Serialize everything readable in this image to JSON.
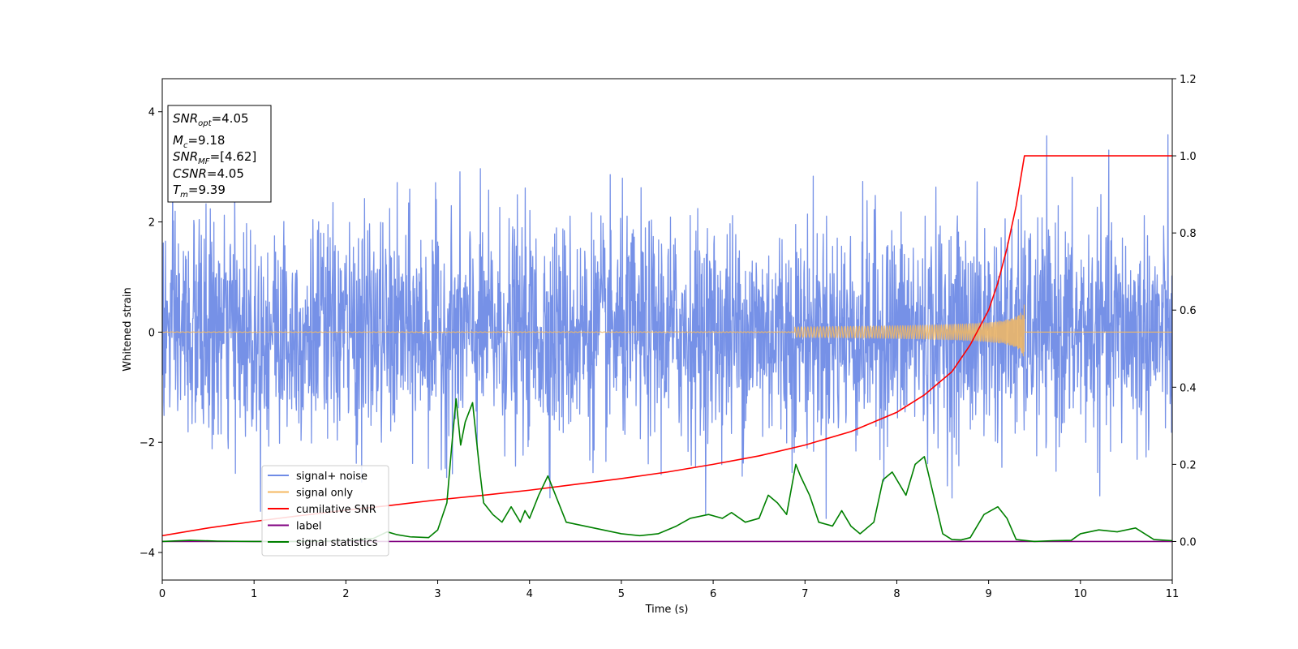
{
  "chart_data": {
    "type": "line",
    "title": "",
    "xlabel": "Time (s)",
    "ylabel": "Whitened strain",
    "xlim": [
      0,
      11
    ],
    "ylim": [
      -4.5,
      4.6
    ],
    "y2lim": [
      -0.1,
      1.2
    ],
    "x_ticks": [
      "0",
      "1",
      "2",
      "3",
      "4",
      "5",
      "6",
      "7",
      "8",
      "9",
      "10",
      "11"
    ],
    "y_ticks": [
      "−4",
      "−2",
      "0",
      "2",
      "4"
    ],
    "y2_ticks": [
      "0.0",
      "0.2",
      "0.4",
      "0.6",
      "0.8",
      "1.0",
      "1.2"
    ],
    "grid": false,
    "legend_position": "lower-left",
    "info_box": {
      "snr_opt": {
        "sym": "SNR",
        "sub": "opt",
        "val": "=4.05"
      },
      "mc": {
        "sym": "M",
        "sub": "c",
        "val": "=9.18"
      },
      "snr_mf": {
        "sym": "SNR",
        "sub": "MF",
        "val": "=[4.62]"
      },
      "csnr": {
        "sym": "CSNR",
        "val": "=4.05"
      },
      "tm": {
        "sym": "T",
        "sub": "m",
        "val": "=9.39"
      }
    },
    "series": [
      {
        "name": "signal+ noise",
        "axis": "left",
        "color": "#6f8be6",
        "kind": "noise",
        "sigma": 1.0,
        "sample_rate": 256
      },
      {
        "name": "signal only",
        "axis": "left",
        "color": "#f4b860",
        "kind": "chirp",
        "merger_time": 9.39,
        "peak_amplitude": 0.52
      },
      {
        "name": "cumilative SNR",
        "axis": "right",
        "color": "#ff0000",
        "x": [
          0,
          0.5,
          1,
          1.5,
          2,
          2.5,
          3,
          3.5,
          4,
          4.5,
          5,
          5.5,
          6,
          6.5,
          7,
          7.5,
          8,
          8.3,
          8.6,
          8.8,
          9.0,
          9.1,
          9.2,
          9.3,
          9.39,
          11
        ],
        "y": [
          0.015,
          0.035,
          0.052,
          0.067,
          0.081,
          0.094,
          0.108,
          0.12,
          0.133,
          0.148,
          0.163,
          0.18,
          0.2,
          0.222,
          0.25,
          0.285,
          0.335,
          0.38,
          0.44,
          0.51,
          0.6,
          0.67,
          0.76,
          0.87,
          1.0,
          1.0
        ]
      },
      {
        "name": "label",
        "axis": "right",
        "color": "#800080",
        "x": [
          0,
          11
        ],
        "y": [
          0.0,
          0.0
        ]
      },
      {
        "name": "signal statistics",
        "axis": "right",
        "color": "#008000",
        "x": [
          0,
          0.3,
          0.6,
          1.0,
          1.5,
          2.0,
          2.3,
          2.45,
          2.55,
          2.7,
          2.9,
          3.0,
          3.1,
          3.15,
          3.2,
          3.25,
          3.3,
          3.38,
          3.45,
          3.5,
          3.6,
          3.7,
          3.8,
          3.9,
          3.95,
          4.0,
          4.1,
          4.2,
          4.3,
          4.4,
          4.6,
          4.8,
          5.0,
          5.2,
          5.4,
          5.6,
          5.75,
          5.85,
          5.95,
          6.1,
          6.2,
          6.35,
          6.5,
          6.6,
          6.7,
          6.8,
          6.9,
          6.95,
          7.05,
          7.15,
          7.3,
          7.4,
          7.5,
          7.6,
          7.75,
          7.85,
          7.95,
          8.1,
          8.2,
          8.3,
          8.4,
          8.5,
          8.6,
          8.7,
          8.8,
          8.95,
          9.1,
          9.2,
          9.3,
          9.5,
          9.7,
          9.9,
          10.0,
          10.2,
          10.4,
          10.6,
          10.8,
          11
        ],
        "y": [
          0.0,
          0.003,
          0.001,
          0.0,
          0.0,
          0.002,
          0.008,
          0.025,
          0.018,
          0.012,
          0.01,
          0.03,
          0.1,
          0.24,
          0.37,
          0.25,
          0.31,
          0.36,
          0.2,
          0.1,
          0.07,
          0.05,
          0.09,
          0.05,
          0.08,
          0.06,
          0.12,
          0.17,
          0.11,
          0.05,
          0.04,
          0.03,
          0.02,
          0.015,
          0.02,
          0.04,
          0.06,
          0.065,
          0.07,
          0.06,
          0.075,
          0.05,
          0.06,
          0.12,
          0.1,
          0.07,
          0.2,
          0.17,
          0.12,
          0.05,
          0.04,
          0.08,
          0.04,
          0.02,
          0.05,
          0.16,
          0.18,
          0.12,
          0.2,
          0.22,
          0.12,
          0.02,
          0.005,
          0.004,
          0.01,
          0.07,
          0.09,
          0.06,
          0.005,
          0.0,
          0.002,
          0.003,
          0.02,
          0.03,
          0.025,
          0.035,
          0.005,
          0.002
        ]
      }
    ]
  }
}
